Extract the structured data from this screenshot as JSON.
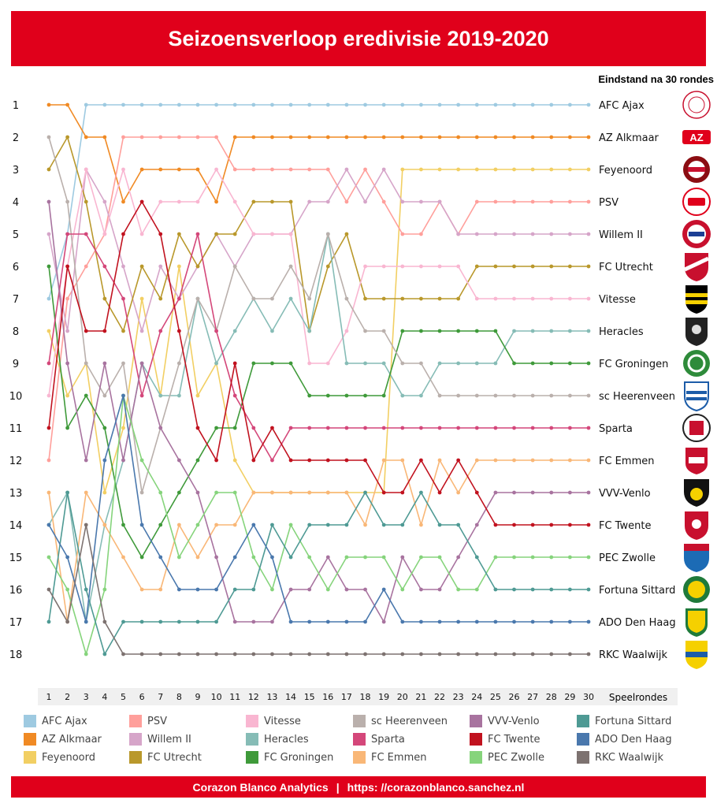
{
  "header": {
    "title": "Seizoensverloop eredivisie 2019-2020"
  },
  "footer": {
    "brand": "Corazon Blanco Analytics",
    "separator": "|",
    "url": "https: //corazonblanco.sanchez.nl"
  },
  "chart_data": {
    "type": "line",
    "subtitle": "Eindstand na 30 rondes",
    "xlabel": "Speelrondes",
    "x": [
      1,
      2,
      3,
      4,
      5,
      6,
      7,
      8,
      9,
      10,
      11,
      12,
      13,
      14,
      15,
      16,
      17,
      18,
      19,
      20,
      21,
      22,
      23,
      24,
      25,
      26,
      27,
      28,
      29,
      30
    ],
    "y_ticks": [
      1,
      2,
      3,
      4,
      5,
      6,
      7,
      8,
      9,
      10,
      11,
      12,
      13,
      14,
      15,
      16,
      17,
      18
    ],
    "ylim": [
      1,
      18
    ],
    "y_inverted": true,
    "grid": false,
    "legend_position": "bottom",
    "series": [
      {
        "name": "AFC Ajax",
        "color": "#9ecae1",
        "icon": "ajax-logo",
        "values": [
          7,
          5,
          1,
          1,
          1,
          1,
          1,
          1,
          1,
          1,
          1,
          1,
          1,
          1,
          1,
          1,
          1,
          1,
          1,
          1,
          1,
          1,
          1,
          1,
          1,
          1,
          1,
          1,
          1,
          1
        ]
      },
      {
        "name": "AZ Alkmaar",
        "color": "#f08a24",
        "icon": "az-logo",
        "values": [
          1,
          1,
          2,
          2,
          4,
          3,
          3,
          3,
          3,
          4,
          2,
          2,
          2,
          2,
          2,
          2,
          2,
          2,
          2,
          2,
          2,
          2,
          2,
          2,
          2,
          2,
          2,
          2,
          2,
          2
        ]
      },
      {
        "name": "Feyenoord",
        "color": "#f2cf63",
        "icon": "feyenoord-logo",
        "values": [
          8,
          10,
          9,
          13,
          11,
          7,
          10,
          6,
          10,
          9,
          12,
          13,
          13,
          13,
          13,
          13,
          13,
          13,
          13,
          3,
          3,
          3,
          3,
          3,
          3,
          3,
          3,
          3,
          3,
          3
        ]
      },
      {
        "name": "PSV",
        "color": "#ff9f9b",
        "icon": "psv-logo",
        "values": [
          12,
          7,
          6,
          5,
          2,
          2,
          2,
          2,
          2,
          2,
          3,
          3,
          3,
          3,
          3,
          3,
          4,
          3,
          4,
          5,
          5,
          4,
          5,
          4,
          4,
          4,
          4,
          4,
          4,
          4
        ]
      },
      {
        "name": "Willem II",
        "color": "#d6a5c9",
        "icon": "willem-ii-logo",
        "values": [
          5,
          8,
          3,
          4,
          6,
          8,
          6,
          7,
          6,
          5,
          6,
          5,
          5,
          5,
          4,
          4,
          3,
          4,
          3,
          4,
          4,
          4,
          5,
          5,
          5,
          5,
          5,
          5,
          5,
          5
        ]
      },
      {
        "name": "FC Utrecht",
        "color": "#b9982b",
        "icon": "fc-utrecht-logo",
        "values": [
          3,
          2,
          4,
          7,
          8,
          6,
          7,
          5,
          6,
          5,
          5,
          4,
          4,
          4,
          8,
          6,
          5,
          7,
          7,
          7,
          7,
          7,
          7,
          6,
          6,
          6,
          6,
          6,
          6,
          6
        ]
      },
      {
        "name": "Vitesse",
        "color": "#f9b6d1",
        "icon": "vitesse-logo",
        "values": [
          10,
          6,
          3,
          5,
          3,
          5,
          4,
          4,
          4,
          3,
          4,
          5,
          5,
          5,
          9,
          9,
          8,
          6,
          6,
          6,
          6,
          6,
          6,
          7,
          7,
          7,
          7,
          7,
          7,
          7
        ]
      },
      {
        "name": "Heracles",
        "color": "#86bcb6",
        "icon": "heracles-logo",
        "values": [
          14,
          13,
          17,
          14,
          12,
          9,
          10,
          10,
          7,
          9,
          8,
          7,
          8,
          7,
          8,
          5,
          9,
          9,
          9,
          10,
          10,
          9,
          9,
          9,
          9,
          8,
          8,
          8,
          8,
          8
        ]
      },
      {
        "name": "FC Groningen",
        "color": "#3f9a3a",
        "icon": "fc-groningen-logo",
        "values": [
          6,
          11,
          10,
          11,
          14,
          15,
          14,
          13,
          12,
          11,
          11,
          9,
          9,
          9,
          10,
          10,
          10,
          10,
          10,
          8,
          8,
          8,
          8,
          8,
          8,
          9,
          9,
          9,
          9,
          9
        ]
      },
      {
        "name": "sc Heerenveen",
        "color": "#bab0ac",
        "icon": "sc-heerenveen-logo",
        "values": [
          2,
          4,
          9,
          10,
          9,
          13,
          11,
          9,
          7,
          8,
          6,
          7,
          7,
          6,
          7,
          5,
          7,
          8,
          8,
          9,
          9,
          10,
          10,
          10,
          10,
          10,
          10,
          10,
          10,
          10
        ]
      },
      {
        "name": "Sparta",
        "color": "#d4477a",
        "icon": "sparta-logo",
        "values": [
          9,
          5,
          5,
          6,
          7,
          10,
          8,
          7,
          5,
          8,
          10,
          11,
          12,
          11,
          11,
          11,
          11,
          11,
          11,
          11,
          11,
          11,
          11,
          11,
          11,
          11,
          11,
          11,
          11,
          11
        ]
      },
      {
        "name": "FC Emmen",
        "color": "#f9b777",
        "icon": "fc-emmen-logo",
        "values": [
          13,
          17,
          13,
          14,
          15,
          16,
          16,
          14,
          15,
          14,
          14,
          13,
          13,
          13,
          13,
          13,
          13,
          14,
          12,
          12,
          14,
          12,
          13,
          12,
          12,
          12,
          12,
          12,
          12,
          12
        ]
      },
      {
        "name": "VVV-Venlo",
        "color": "#a8739f",
        "icon": "vvv-venlo-logo",
        "values": [
          4,
          9,
          12,
          9,
          12,
          9,
          11,
          12,
          13,
          15,
          17,
          17,
          17,
          16,
          16,
          15,
          16,
          16,
          17,
          15,
          16,
          16,
          15,
          14,
          13,
          13,
          13,
          13,
          13,
          13
        ]
      },
      {
        "name": "FC Twente",
        "color": "#c1121f",
        "icon": "fc-twente-logo",
        "values": [
          11,
          6,
          8,
          8,
          5,
          4,
          5,
          8,
          11,
          12,
          9,
          12,
          11,
          12,
          12,
          12,
          12,
          12,
          13,
          13,
          12,
          13,
          12,
          13,
          14,
          14,
          14,
          14,
          14,
          14
        ]
      },
      {
        "name": "PEC Zwolle",
        "color": "#86d47c",
        "icon": "pec-zwolle-logo",
        "values": [
          15,
          16,
          18,
          16,
          10,
          12,
          13,
          15,
          14,
          13,
          13,
          15,
          16,
          14,
          15,
          16,
          15,
          15,
          15,
          16,
          15,
          15,
          16,
          16,
          15,
          15,
          15,
          15,
          15,
          15
        ]
      },
      {
        "name": "Fortuna Sittard",
        "color": "#4e9a94",
        "icon": "fortuna-sittard-logo",
        "values": [
          17,
          13,
          16,
          18,
          17,
          17,
          17,
          17,
          17,
          17,
          16,
          16,
          14,
          15,
          14,
          14,
          14,
          13,
          14,
          14,
          13,
          14,
          14,
          15,
          16,
          16,
          16,
          16,
          16,
          16
        ]
      },
      {
        "name": "ADO Den Haag",
        "color": "#4a78ad",
        "icon": "ado-den-haag-logo",
        "values": [
          14,
          15,
          17,
          12,
          10,
          14,
          15,
          16,
          16,
          16,
          15,
          14,
          15,
          17,
          17,
          17,
          17,
          17,
          16,
          17,
          17,
          17,
          17,
          17,
          17,
          17,
          17,
          17,
          17,
          17
        ]
      },
      {
        "name": "RKC Waalwijk",
        "color": "#7d7270",
        "icon": "rkc-waalwijk-logo",
        "values": [
          16,
          17,
          14,
          17,
          18,
          18,
          18,
          18,
          18,
          18,
          18,
          18,
          18,
          18,
          18,
          18,
          18,
          18,
          18,
          18,
          18,
          18,
          18,
          18,
          18,
          18,
          18,
          18,
          18,
          18
        ]
      }
    ]
  }
}
